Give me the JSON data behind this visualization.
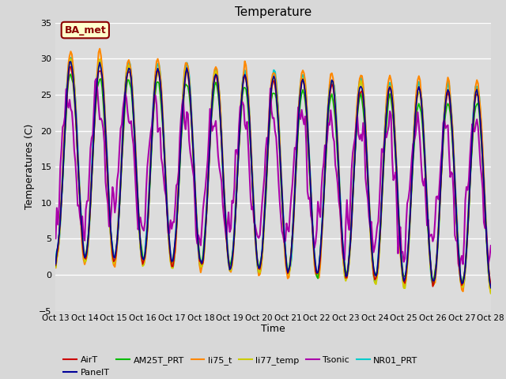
{
  "title": "Temperature",
  "ylabel": "Temperatures (C)",
  "xlabel": "Time",
  "xlim": [
    0,
    375
  ],
  "ylim": [
    -5,
    35
  ],
  "yticks": [
    -5,
    0,
    5,
    10,
    15,
    20,
    25,
    30,
    35
  ],
  "xtick_labels": [
    "Oct 13",
    "Oct 14",
    "Oct 15",
    "Oct 16",
    "Oct 17",
    "Oct 18",
    "Oct 19",
    "Oct 20",
    "Oct 21",
    "Oct 22",
    "Oct 23",
    "Oct 24",
    "Oct 25",
    "Oct 26",
    "Oct 27",
    "Oct 28"
  ],
  "xtick_positions": [
    0,
    25,
    50,
    75,
    100,
    125,
    150,
    175,
    200,
    225,
    250,
    275,
    300,
    325,
    350,
    375
  ],
  "fig_bg": "#d8d8d8",
  "ax_bg": "#dcdcdc",
  "annotation_text": "BA_met",
  "annotation_color": "#8B0000",
  "annotation_bg": "#ffffcc",
  "series": {
    "AirT": {
      "color": "#cc0000",
      "lw": 1.2
    },
    "PanelT": {
      "color": "#000099",
      "lw": 1.2
    },
    "AM25T_PRT": {
      "color": "#00bb00",
      "lw": 1.2
    },
    "li75_t": {
      "color": "#ff8800",
      "lw": 1.5
    },
    "li77_temp": {
      "color": "#cccc00",
      "lw": 1.5
    },
    "Tsonic": {
      "color": "#aa00aa",
      "lw": 1.5
    },
    "NR01_PRT": {
      "color": "#00cccc",
      "lw": 1.8
    }
  }
}
